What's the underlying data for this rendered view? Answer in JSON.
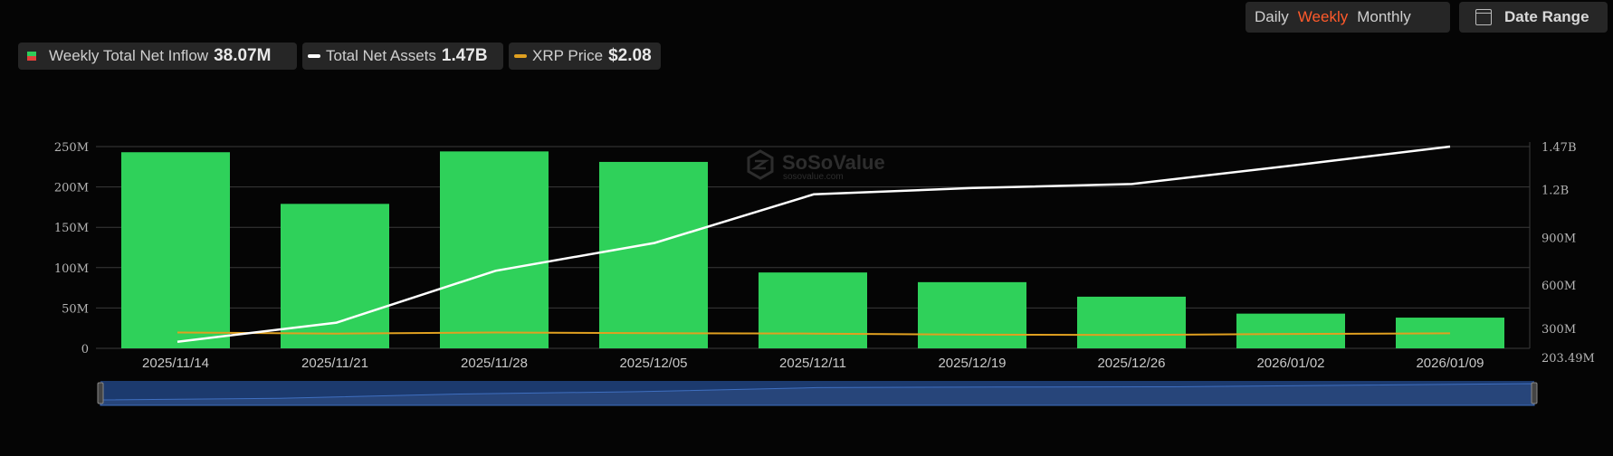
{
  "controls": {
    "periods": [
      "Daily",
      "Weekly",
      "Monthly"
    ],
    "active_period": "Weekly",
    "date_range_label": "Date Range"
  },
  "legend": {
    "inflow": {
      "label": "Weekly Total Net Inflow",
      "value": "38.07M",
      "color_pos": "#2ecc5a",
      "color_neg": "#e0403a"
    },
    "assets": {
      "label": "Total Net Assets",
      "value": "1.47B",
      "color": "#ffffff"
    },
    "price": {
      "label": "XRP Price",
      "value": "$2.08",
      "color": "#e0a020"
    }
  },
  "watermark": {
    "name": "SoSoValue",
    "url": "sosovalue.com"
  },
  "chart_data": {
    "type": "bar",
    "categories": [
      "2025/11/14",
      "2025/11/21",
      "2025/11/28",
      "2025/12/05",
      "2025/12/11",
      "2025/12/19",
      "2025/12/26",
      "2026/01/02",
      "2026/01/09"
    ],
    "series": [
      {
        "name": "Weekly Total Net Inflow",
        "type": "bar",
        "axis": "left",
        "values": [
          243,
          179,
          244,
          231,
          94,
          82,
          64,
          43,
          38.07
        ]
      },
      {
        "name": "Total Net Assets",
        "type": "line",
        "axis": "right",
        "values": [
          245,
          365,
          690,
          865,
          1170,
          1210,
          1235,
          1350,
          1470
        ]
      },
      {
        "name": "XRP Price",
        "type": "line",
        "axis": "price",
        "values": [
          2.2,
          2.05,
          2.2,
          2.1,
          2.05,
          1.9,
          1.85,
          2.0,
          2.08
        ]
      }
    ],
    "left_axis": {
      "ticks": [
        "0",
        "50M",
        "100M",
        "150M",
        "200M",
        "250M"
      ],
      "min": 0,
      "max": 250
    },
    "right_axis": {
      "ticks": [
        "203.49M",
        "300M",
        "600M",
        "900M",
        "1.2B",
        "1.47B"
      ],
      "tick_values": [
        203.49,
        300,
        600,
        900,
        1200,
        1470
      ],
      "min": 203.49,
      "max": 1470
    },
    "price_axis": {
      "min": 0,
      "max": 28
    },
    "grid": true
  }
}
